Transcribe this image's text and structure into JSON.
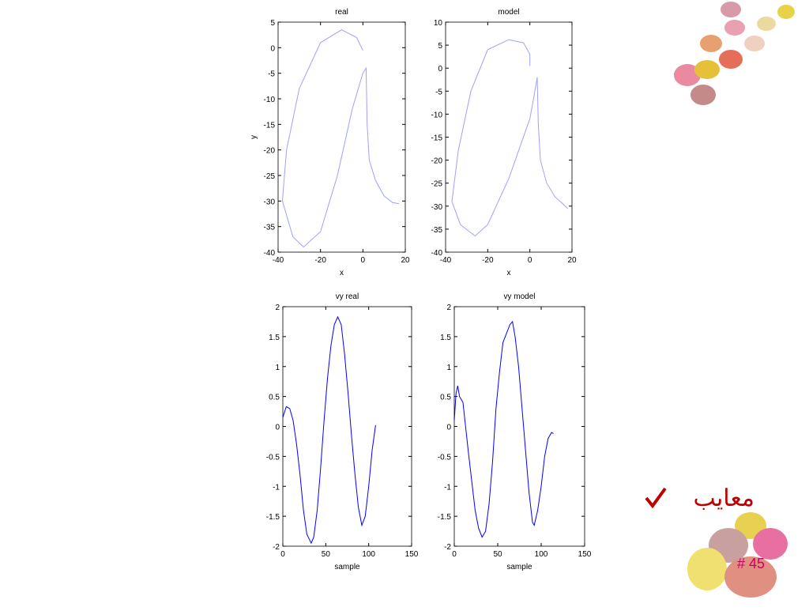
{
  "chart_data": [
    {
      "type": "line",
      "title": "real",
      "x_label": "x",
      "y_label": "y",
      "color": "#a0a0ff",
      "xlim": [
        -40,
        20
      ],
      "ylim": [
        -40,
        5
      ],
      "xticks": [
        -40,
        -20,
        0,
        20
      ],
      "yticks": [
        5,
        0,
        -5,
        -10,
        -15,
        -20,
        -25,
        -30,
        -35,
        -40
      ],
      "x": [
        0,
        -3,
        -10,
        -20,
        -30,
        -36,
        -38,
        -33,
        -28,
        -20,
        -12,
        -5,
        0,
        1.5,
        2,
        3,
        6,
        10,
        14,
        17
      ],
      "values": [
        -0.5,
        2,
        3.5,
        1,
        -8,
        -20,
        -30,
        -37,
        -39,
        -36,
        -25,
        -12,
        -5,
        -4,
        -15,
        -22,
        -26,
        -29,
        -30.3,
        -30.5
      ]
    },
    {
      "type": "line",
      "title": "model",
      "x_label": "x",
      "color": "#a0a0ff",
      "xlim": [
        -40,
        20
      ],
      "ylim": [
        -40,
        10
      ],
      "xticks": [
        -40,
        -20,
        0,
        20
      ],
      "yticks": [
        10,
        5,
        0,
        -5,
        -10,
        -15,
        -20,
        -25,
        -30,
        -35,
        -40
      ],
      "x": [
        0,
        0,
        -3,
        -10,
        -20,
        -28,
        -34,
        -37,
        -33,
        -26,
        -20,
        -10,
        0,
        2,
        3.5,
        4,
        5,
        8,
        12,
        18
      ],
      "values": [
        0.5,
        3,
        5.5,
        6.2,
        4,
        -5,
        -18,
        -29,
        -34,
        -36.5,
        -34,
        -24,
        -11,
        -6,
        -2,
        -12,
        -20,
        -25,
        -28,
        -30.5
      ]
    },
    {
      "type": "line",
      "title": "vy real",
      "x_label": "sample",
      "color": "#0000ff",
      "xlim": [
        0,
        150
      ],
      "ylim": [
        -2,
        2
      ],
      "xticks": [
        0,
        50,
        100,
        150
      ],
      "yticks": [
        2,
        1.5,
        1,
        0.5,
        0,
        -0.5,
        -1,
        -1.5,
        -2
      ],
      "x": [
        0,
        4,
        8,
        12,
        16,
        20,
        24,
        28,
        33,
        36,
        40,
        44,
        48,
        52,
        56,
        60,
        64,
        68,
        72,
        76,
        80,
        84,
        88,
        92,
        96,
        100,
        104,
        108
      ],
      "values": [
        0.15,
        0.33,
        0.3,
        0.1,
        -0.3,
        -0.8,
        -1.4,
        -1.8,
        -1.95,
        -1.85,
        -1.4,
        -0.7,
        0.1,
        0.8,
        1.35,
        1.7,
        1.83,
        1.7,
        1.2,
        0.55,
        -0.15,
        -0.8,
        -1.35,
        -1.65,
        -1.5,
        -1,
        -0.4,
        0.02
      ]
    },
    {
      "type": "line",
      "title": "vy model",
      "x_label": "sample",
      "color": "#0000ff",
      "xlim": [
        0,
        150
      ],
      "ylim": [
        -2,
        2
      ],
      "xticks": [
        0,
        50,
        100,
        150
      ],
      "yticks": [
        2,
        1.5,
        1,
        0.5,
        0,
        -0.5,
        -1,
        -1.5,
        -2
      ],
      "x": [
        0,
        2,
        4,
        6,
        8,
        10,
        13,
        16,
        20,
        24,
        28,
        32,
        36,
        40,
        44,
        48,
        52,
        56,
        60,
        64,
        67,
        70,
        74,
        78,
        82,
        86,
        90,
        92,
        96,
        100,
        104,
        108,
        112,
        114
      ],
      "values": [
        0.1,
        0.55,
        0.68,
        0.5,
        0.45,
        0.4,
        0,
        -0.4,
        -0.9,
        -1.4,
        -1.7,
        -1.85,
        -1.75,
        -1.3,
        -0.6,
        0.3,
        0.9,
        1.4,
        1.55,
        1.7,
        1.75,
        1.5,
        1,
        0.3,
        -0.4,
        -1.1,
        -1.6,
        -1.65,
        -1.4,
        -1,
        -0.5,
        -0.2,
        -0.1,
        -0.12
      ]
    }
  ],
  "slide": {
    "heading": "معایب",
    "page_number": "# 45"
  }
}
